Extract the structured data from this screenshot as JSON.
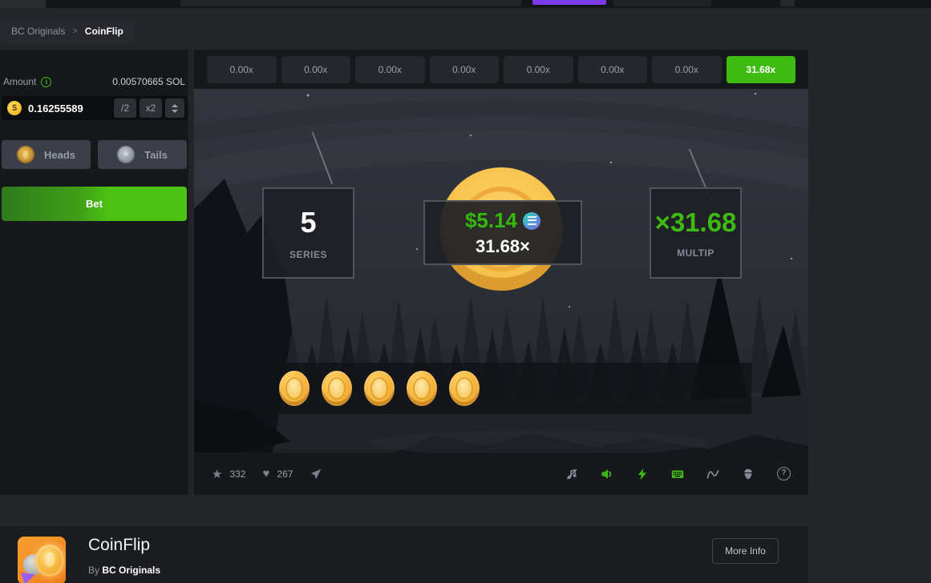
{
  "breadcrumb": {
    "parent": "BC Originals",
    "separator": ">",
    "current": "CoinFlip"
  },
  "bet_panel": {
    "amount_label": "Amount",
    "balance": "0.00570665 SOL",
    "amount_value": "0.16255589",
    "half_label": "/2",
    "double_label": "x2",
    "heads_label": "Heads",
    "tails_label": "Tails",
    "bet_label": "Bet"
  },
  "multiplier_chips": [
    {
      "label": "0.00x",
      "active": false
    },
    {
      "label": "0.00x",
      "active": false
    },
    {
      "label": "0.00x",
      "active": false
    },
    {
      "label": "0.00x",
      "active": false
    },
    {
      "label": "0.00x",
      "active": false
    },
    {
      "label": "0.00x",
      "active": false
    },
    {
      "label": "0.00x",
      "active": false
    },
    {
      "label": "31.68x",
      "active": true
    }
  ],
  "game": {
    "series_value": "5",
    "series_label": "SERIES",
    "payout_amount": "$5.14",
    "payout_currency_icon": "solana-icon",
    "payout_multiplier": "31.68×",
    "multiplier_value": "×31.68",
    "multiplier_label": "MULTIP",
    "result_coin_count": 5
  },
  "footer_toolbar": {
    "favorites_count": "332",
    "likes_count": "267",
    "icons": [
      "star-icon",
      "heart-icon",
      "share-icon",
      "music-off-icon",
      "sound-icon",
      "turbo-icon",
      "hotkeys-icon",
      "live-stats-icon",
      "fairness-seed-icon",
      "help-icon"
    ],
    "help_glyph": "?"
  },
  "game_info": {
    "title": "CoinFlip",
    "by_label": "By",
    "provider": "BC Originals",
    "more_info_label": "More Info"
  },
  "theme": {
    "accent_green": "#3dbb12",
    "payout_green": "#35b90f",
    "coin_gold": "#f6b23a",
    "topbar_accent_purple": "#7c3aed"
  }
}
